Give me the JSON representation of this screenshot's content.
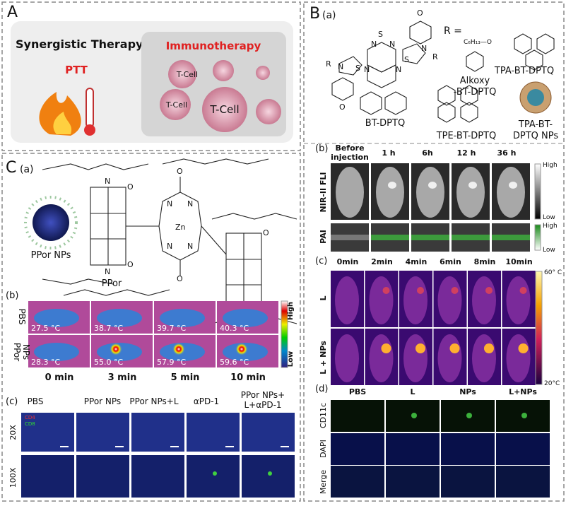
{
  "panel_a": {
    "letter": "A",
    "title": "Synergistic Therapy",
    "ptt": "PTT",
    "immuno": "Immunotherapy",
    "cells": [
      "T-Cell",
      "T-Cell",
      "T-Cell"
    ]
  },
  "panel_b": {
    "letter": "B",
    "a": {
      "label": "(a)",
      "r_eq": "R =",
      "alkoxy_group": "C₆H₁₃—O",
      "atoms": [
        "S",
        "N",
        "N",
        "N",
        "N",
        "S",
        "S",
        "N",
        "N",
        "R",
        "R",
        "O",
        "O"
      ],
      "compounds": [
        "BT-DPTQ",
        "Alkoxy",
        "-BT-DPTQ",
        "TPA-BT-DPTQ",
        "TPE-BT-DPTQ",
        "TPA-BT-",
        "DPTQ NPs"
      ]
    },
    "b": {
      "label": "(b)",
      "times": [
        "Before",
        "injection",
        "1 h",
        "6h",
        "12 h",
        "36 h"
      ],
      "rows": [
        "NIR-II FLI",
        "PAI"
      ],
      "scale1": [
        "High",
        "Low"
      ],
      "scale2": [
        "High",
        "Low"
      ]
    },
    "c": {
      "label": "(c)",
      "times": [
        "0min",
        "2min",
        "4min",
        "6min",
        "8min",
        "10min"
      ],
      "rows": [
        "L",
        "L + NPs"
      ],
      "scale": [
        "60° C",
        "20°C"
      ]
    },
    "d": {
      "label": "(d)",
      "columns": [
        "PBS",
        "L",
        "NPs",
        "L+NPs"
      ],
      "rows": [
        "CD11c",
        "DAPI",
        "Merge"
      ]
    }
  },
  "panel_c": {
    "letter": "C",
    "a": {
      "label": "(a)",
      "np": "PPor NPs",
      "compound": "PPor",
      "metal": "Zn",
      "atoms": [
        "N",
        "N",
        "N",
        "N",
        "O",
        "O",
        "O",
        "O",
        "N",
        "N",
        "O",
        "O"
      ]
    },
    "b": {
      "label": "(b)",
      "rows": [
        "PBS",
        "PPor",
        "NPs"
      ],
      "temps": [
        [
          "27.5 °C",
          "38.7 °C",
          "39.7 °C",
          "40.3 °C"
        ],
        [
          "28.3 °C",
          "55.0 °C",
          "57.9 °C",
          "59.6 °C"
        ]
      ],
      "times": [
        "0 min",
        "3 min",
        "5 min",
        "10 min"
      ],
      "scale": [
        "High",
        "Low"
      ]
    },
    "c": {
      "label": "(c)",
      "columns": [
        "PBS",
        "PPor NPs",
        "PPor NPs+L",
        "αPD-1",
        "PPor NPs+",
        "L+αPD-1"
      ],
      "rows": [
        "20X",
        "100X"
      ],
      "markers": [
        "CD4",
        "CD8"
      ]
    }
  }
}
